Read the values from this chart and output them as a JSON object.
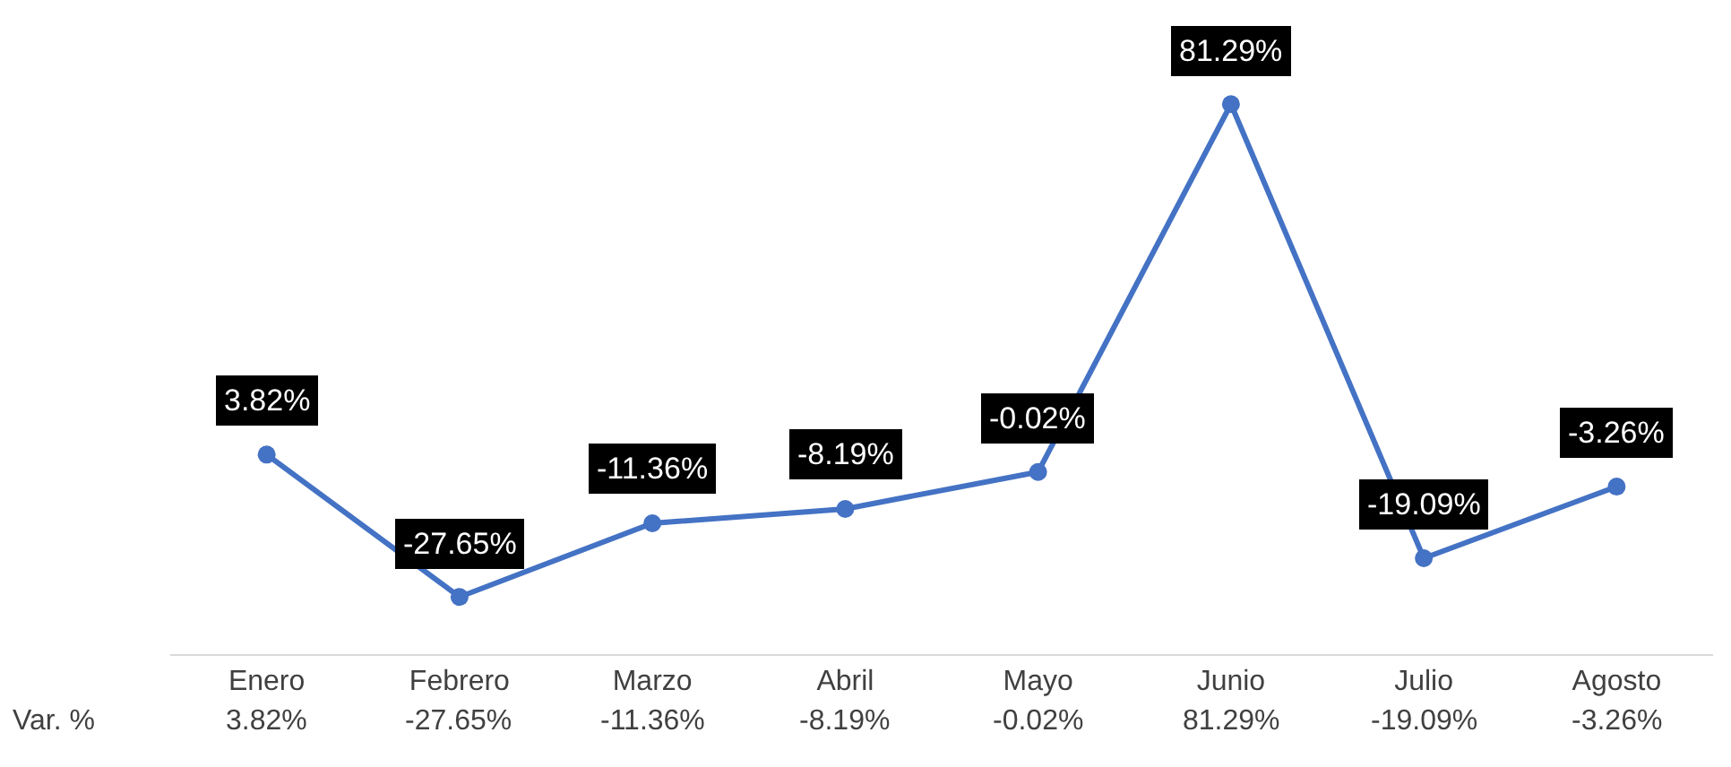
{
  "chart_data": {
    "type": "line",
    "categories": [
      "Enero",
      "Febrero",
      "Marzo",
      "Abril",
      "Mayo",
      "Junio",
      "Julio",
      "Agosto"
    ],
    "series": [
      {
        "name": "Var. %",
        "color": "#4472c4",
        "values": [
          3.82,
          -27.65,
          -11.36,
          -8.19,
          -0.02,
          81.29,
          -19.09,
          -3.26
        ],
        "value_labels": [
          "3.82%",
          "-27.65%",
          "-11.36%",
          "-8.19%",
          "-0.02%",
          "81.29%",
          "-19.09%",
          "-3.26%"
        ]
      }
    ],
    "marker": "circle",
    "line_style": "solid",
    "grid": false,
    "legend": false
  }
}
